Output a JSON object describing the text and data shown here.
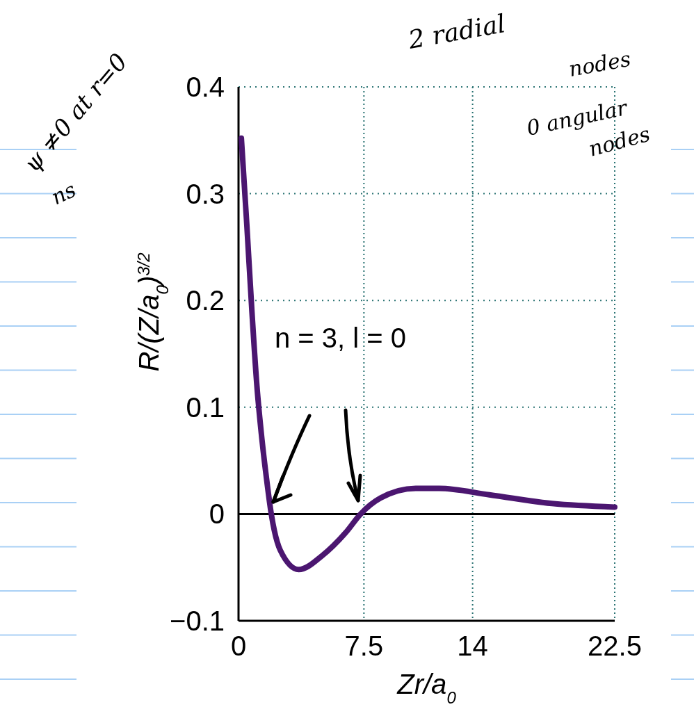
{
  "chart_data": {
    "type": "line",
    "xlabel": "Zr/a$_{0}$",
    "ylabel": "R/(Z/a$_{0}$)$^{3/2}$",
    "x": [
      0.17,
      0.5,
      0.8,
      1.1,
      1.4,
      1.7,
      1.96,
      2.5,
      3.6,
      5.0,
      6.4,
      7.3,
      8.5,
      10.6,
      11.4,
      12.0,
      15.0,
      18.75,
      22.5
    ],
    "series": [
      {
        "color": "#4b1670",
        "values": [
          0.352,
          0.27,
          0.19,
          0.12,
          0.07,
          0.03,
          0,
          -0.034,
          -0.052,
          -0.039,
          -0.0176,
          0,
          0.015,
          0.024,
          0.024,
          0.024,
          0.018,
          0.0098,
          0.0065
        ]
      }
    ],
    "xlim": [
      0,
      22.5
    ],
    "xticks": [
      0,
      7.5,
      14,
      22.5
    ],
    "ylim": [
      -0.1,
      0.4
    ],
    "yticks": [
      {
        "value": -0.1,
        "label": "−0.1"
      },
      0,
      0.1,
      0.2,
      0.3,
      0.4
    ],
    "grid": true,
    "marker": "none",
    "line_style": "solid",
    "ref_lines": [
      {
        "axis": "y",
        "value": 0,
        "color": "#000000"
      }
    ],
    "annotations": [
      "n = 3, l = 0",
      "ψ ≠0 at r=0",
      "ns",
      "2 radial",
      "nodes",
      "0 angular",
      "nodes"
    ]
  }
}
